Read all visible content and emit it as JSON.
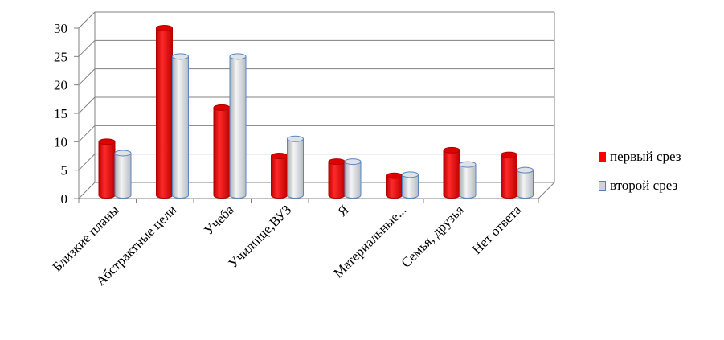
{
  "chart_data": {
    "type": "bar",
    "categories": [
      "Близкие планы",
      "Абстрактные цели",
      "Учеба",
      "Училище,ВУЗ",
      "Я",
      "Материальные...",
      "Семья, друзья",
      "Нет ответа"
    ],
    "series": [
      {
        "name": "первый  срез",
        "color": "#ff0000",
        "values": [
          10,
          30,
          16,
          7.5,
          6.5,
          4,
          8.5,
          7.7
        ]
      },
      {
        "name": "второй срез",
        "color": "#cfd3d6",
        "values": [
          8,
          25,
          25,
          10.5,
          6.5,
          4.2,
          6,
          5
        ]
      }
    ],
    "yticks": [
      "0",
      "5",
      "10",
      "15",
      "20",
      "25",
      "30"
    ],
    "ylim": [
      0,
      30
    ],
    "grid": true,
    "legend_position": "right",
    "style": "3d-cylinder"
  }
}
